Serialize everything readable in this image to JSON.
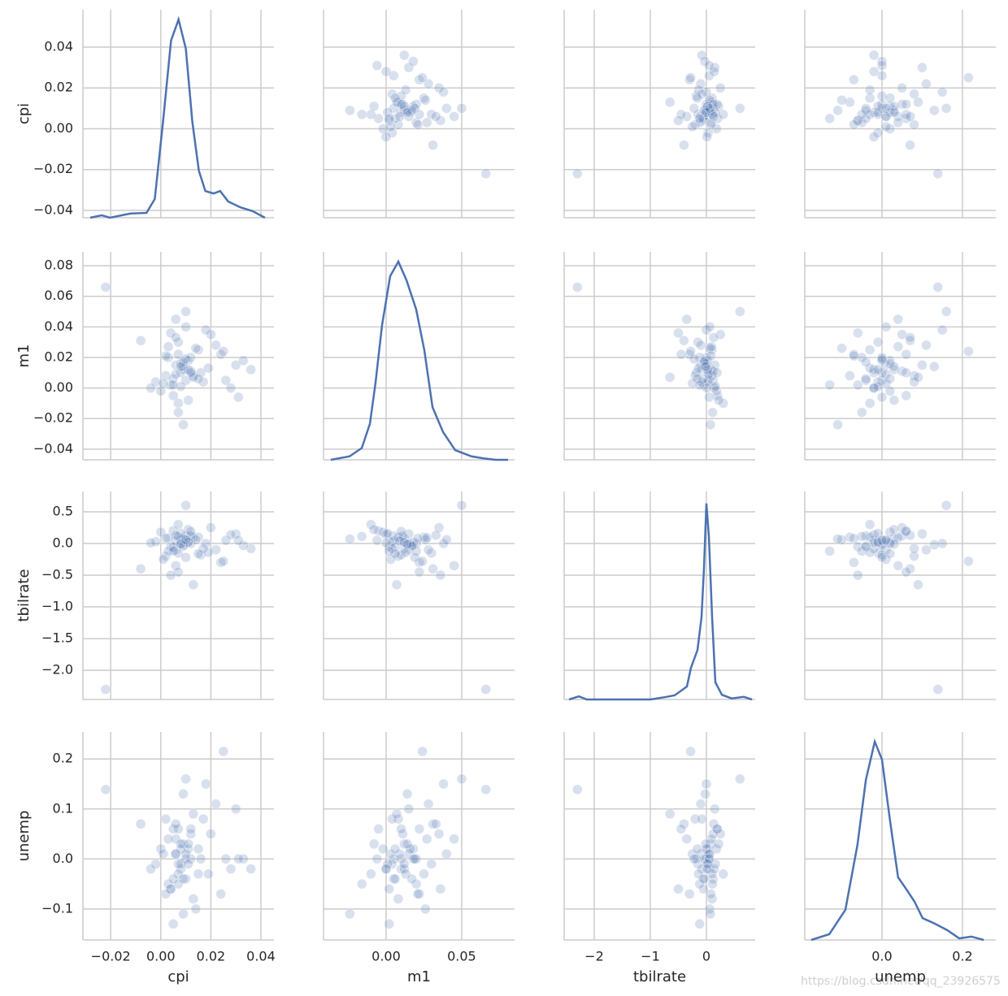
{
  "chart_data": {
    "type": "pairplot",
    "color": "#4c72b0",
    "grid": true,
    "watermark": "https://blog.csdn.net/qq_23926575",
    "variables": [
      {
        "name": "cpi",
        "values": [
          -0.022,
          0.008,
          0.006,
          0.01,
          0.012,
          0.005,
          0.007,
          0.009,
          0.004,
          0.011,
          0.015,
          0.002,
          0.02,
          0.024,
          0.03,
          0.036,
          0.026,
          0.018,
          0.003,
          0.0,
          -0.002,
          -0.008,
          0.013,
          0.006,
          0.009,
          0.007,
          0.001,
          0.014,
          0.016,
          0.01,
          0.008,
          0.005,
          0.011,
          0.022,
          0.028,
          0.033,
          0.007,
          0.009,
          0.012,
          0.004,
          0.006,
          0.019,
          0.017,
          0.008,
          0.003,
          0.01,
          -0.004,
          0.013,
          0.007,
          0.025,
          0.009,
          0.006,
          0.011,
          0.015,
          0.002,
          0.008,
          0.031,
          0.005,
          0.012,
          0.01
        ],
        "xlim": [
          -0.0311,
          0.0452
        ],
        "ylim": [
          -0.0436,
          0.0583
        ],
        "xticks": [
          {
            "value": -0.02,
            "label": "−0.02"
          },
          {
            "value": 0,
            "label": "0.00"
          },
          0.02,
          0.04
        ],
        "yticks": [
          0.04,
          0.02,
          {
            "value": 0,
            "label": "0.00"
          },
          {
            "value": -0.02,
            "label": "−0.02"
          },
          {
            "value": -0.04,
            "label": "−0.04"
          }
        ],
        "kde": {
          "x": [
            -0.0282,
            -0.0236,
            -0.0203,
            -0.0122,
            -0.0057,
            -0.0024,
            0.0009,
            0.0041,
            0.0071,
            0.01,
            0.0126,
            0.0152,
            0.0178,
            0.0211,
            0.0237,
            0.0269,
            0.0318,
            0.0367,
            0.0416
          ],
          "density": [
            0,
            0.7,
            0,
            1.2,
            1.4,
            5.4,
            27.7,
            51.1,
            57.2,
            48.8,
            27.7,
            13.6,
            7.7,
            7.0,
            7.7,
            4.7,
            3.0,
            1.9,
            0
          ]
        },
        "density_lim": [
          0,
          60
        ]
      },
      {
        "name": "m1",
        "values": [
          0.066,
          0.01,
          0.015,
          0.005,
          0.02,
          -0.005,
          0.03,
          0.012,
          0.002,
          0.018,
          0.025,
          0.008,
          0.035,
          0.022,
          0.015,
          0.012,
          0.005,
          0.038,
          0.02,
          -0.002,
          0.004,
          0.031,
          0.008,
          0.045,
          0.014,
          -0.01,
          0.003,
          0.026,
          0.01,
          0.05,
          0.016,
          0.006,
          -0.008,
          0.028,
          0.0,
          0.018,
          0.022,
          -0.024,
          0.011,
          0.036,
          0.009,
          0.013,
          0.004,
          0.001,
          0.027,
          0.019,
          0.0,
          0.007,
          -0.016,
          0.024,
          0.017,
          0.033,
          0.012,
          0.006,
          0.021,
          0.014,
          -0.006,
          0.002,
          0.01,
          0.04
        ],
        "xlim": [
          -0.0414,
          0.085
        ],
        "ylim": [
          -0.047,
          0.0891
        ],
        "xticks": [
          {
            "value": 0,
            "label": "0.00"
          },
          0.05
        ],
        "yticks": [
          0.08,
          0.06,
          0.04,
          0.02,
          {
            "value": 0,
            "label": "0.00"
          },
          {
            "value": -0.02,
            "label": "−0.02"
          },
          {
            "value": -0.04,
            "label": "−0.04"
          }
        ],
        "kde": {
          "x": [
            -0.0366,
            -0.0242,
            -0.0161,
            -0.0107,
            -0.007,
            -0.0027,
            0.0027,
            0.0081,
            0.0135,
            0.0199,
            0.0253,
            0.0307,
            0.0377,
            0.0457,
            0.0565,
            0.0646,
            0.0726,
            0.0807
          ],
          "density": [
            0,
            0.5,
            1.7,
            5.2,
            11.1,
            19.4,
            26.5,
            28.6,
            25.9,
            21.7,
            15.8,
            7.6,
            4.0,
            1.4,
            0.5,
            0.2,
            0,
            0
          ]
        },
        "density_lim": [
          0,
          30
        ]
      },
      {
        "name": "tbilrate",
        "values": [
          -2.3,
          0.05,
          -0.1,
          0.12,
          0.0,
          0.2,
          -0.15,
          0.08,
          -0.05,
          0.02,
          0.1,
          -0.2,
          0.25,
          -0.3,
          0.15,
          -0.08,
          0.05,
          0.0,
          -0.12,
          0.18,
          0.03,
          -0.4,
          0.1,
          -0.35,
          -0.02,
          0.3,
          -0.25,
          0.06,
          -0.18,
          0.6,
          0.0,
          -0.06,
          0.22,
          -0.1,
          0.14,
          -0.03,
          -0.45,
          0.07,
          0.12,
          -0.5,
          0.04,
          -0.14,
          -0.08,
          0.16,
          0.09,
          -0.22,
          0.01,
          -0.65,
          0.11,
          -0.28,
          -0.04,
          0.13,
          0.02,
          -0.16,
          0.08,
          -0.01,
          0.05,
          -0.12,
          0.19,
          0.06
        ],
        "xlim": [
          -2.536,
          0.87
        ],
        "ylim": [
          -2.46,
          0.82
        ],
        "xticks": [
          {
            "value": -2,
            "label": "−2"
          },
          {
            "value": -1,
            "label": "−1"
          },
          0
        ],
        "yticks": [
          0.5,
          {
            "value": 0,
            "label": "0.0"
          },
          {
            "value": -0.5,
            "label": "−0.5"
          },
          {
            "value": -1,
            "label": "−1.0"
          },
          {
            "value": -1.5,
            "label": "−1.5"
          },
          {
            "value": -2,
            "label": "−2.0"
          }
        ],
        "kde": {
          "x": [
            -2.449,
            -2.275,
            -2.13,
            -1.0,
            -0.71,
            -0.565,
            -0.449,
            -0.347,
            -0.275,
            -0.159,
            -0.087,
            -0.043,
            0.0,
            0.044,
            0.102,
            0.16,
            0.276,
            0.45,
            0.667,
            0.812
          ],
          "density": [
            0,
            0.06,
            0,
            0,
            0.05,
            0.08,
            0.17,
            0.25,
            0.61,
            0.95,
            1.58,
            2.52,
            3.77,
            3.14,
            1.58,
            0.33,
            0.09,
            0.02,
            0.05,
            0
          ]
        },
        "density_lim": [
          0,
          4
        ]
      },
      {
        "name": "unemp",
        "values": [
          0.139,
          -0.02,
          0.01,
          -0.04,
          0.0,
          0.06,
          -0.01,
          0.03,
          -0.06,
          0.02,
          -0.03,
          0.08,
          0.05,
          -0.07,
          0.1,
          -0.02,
          0.0,
          0.15,
          -0.05,
          0.02,
          -0.01,
          0.07,
          -0.08,
          0.04,
          0.13,
          -0.03,
          0.01,
          -0.1,
          0.0,
          0.16,
          0.02,
          -0.04,
          0.03,
          0.11,
          -0.02,
          0.0,
          0.06,
          -0.11,
          0.05,
          -0.06,
          0.01,
          -0.03,
          0.08,
          -0.01,
          0.04,
          0.0,
          -0.02,
          0.09,
          -0.05,
          0.215,
          -0.04,
          0.07,
          -0.01,
          0.02,
          -0.07,
          0.03,
          0.0,
          -0.13,
          0.06,
          0.01
        ],
        "xlim": [
          -0.192,
          0.283
        ],
        "ylim": [
          -0.162,
          0.254
        ],
        "xticks": [
          {
            "value": 0,
            "label": "0.0"
          },
          0.2
        ],
        "yticks": [
          0.2,
          0.1,
          {
            "value": 0,
            "label": "0.0"
          },
          {
            "value": -0.1,
            "label": "−0.1"
          }
        ],
        "kde": {
          "x": [
            -0.176,
            -0.131,
            -0.091,
            -0.061,
            -0.04,
            -0.018,
            0.0,
            0.02,
            0.04,
            0.061,
            0.081,
            0.101,
            0.131,
            0.162,
            0.192,
            0.222,
            0.253
          ],
          "density": [
            0,
            0.22,
            1.16,
            3.66,
            6.16,
            7.63,
            6.94,
            4.59,
            2.41,
            1.94,
            1.47,
            0.84,
            0.63,
            0.38,
            0.06,
            0.13,
            0
          ]
        },
        "density_lim": [
          0,
          8
        ]
      }
    ]
  }
}
